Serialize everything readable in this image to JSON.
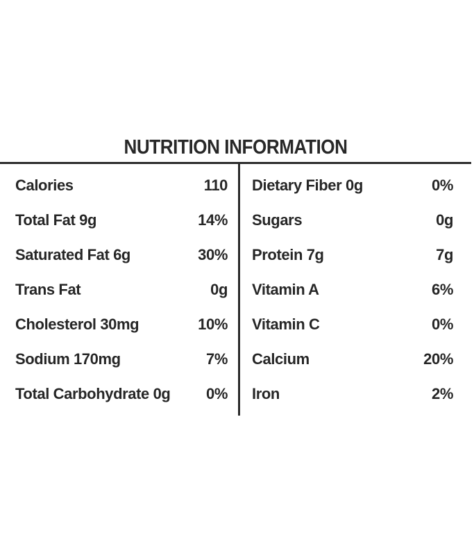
{
  "title": "NUTRITION INFORMATION",
  "colors": {
    "background": "#ffffff",
    "text": "#262626",
    "rule": "#2b2b2b"
  },
  "table": {
    "left_column": [
      {
        "label": "Calories",
        "value": "110"
      },
      {
        "label": "Total Fat 9g",
        "value": "14%"
      },
      {
        "label": "Saturated Fat 6g",
        "value": "30%"
      },
      {
        "label": "Trans Fat",
        "value": "0g"
      },
      {
        "label": "Cholesterol 30mg",
        "value": "10%"
      },
      {
        "label": "Sodium 170mg",
        "value": "7%"
      },
      {
        "label": "Total Carbohydrate 0g",
        "value": "0%"
      }
    ],
    "right_column": [
      {
        "label": "Dietary Fiber 0g",
        "value": "0%"
      },
      {
        "label": "Sugars",
        "value": "0g"
      },
      {
        "label": "Protein 7g",
        "value": "7g"
      },
      {
        "label": "Vitamin A",
        "value": "6%"
      },
      {
        "label": "Vitamin C",
        "value": "0%"
      },
      {
        "label": "Calcium",
        "value": "20%"
      },
      {
        "label": "Iron",
        "value": "2%"
      }
    ]
  }
}
